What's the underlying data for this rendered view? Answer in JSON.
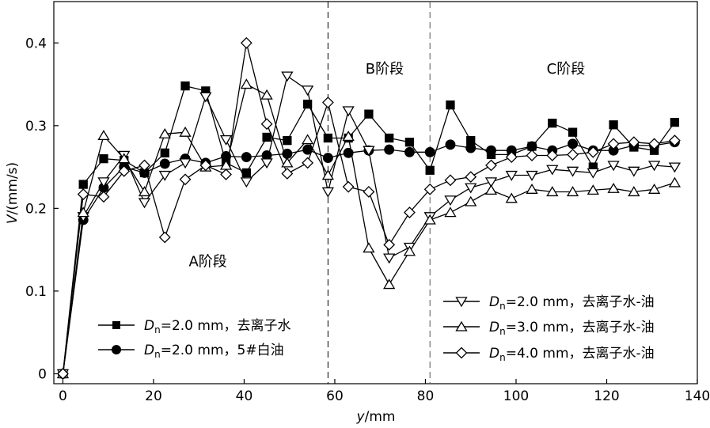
{
  "chart_data": {
    "type": "line",
    "xlabel_var": "y",
    "xlabel_unit": "/mm",
    "ylabel_var": "V",
    "ylabel_unit": "/(mm/s)",
    "xlim": [
      -2,
      140
    ],
    "ylim": [
      -0.012,
      0.45
    ],
    "xticks": [
      0,
      20,
      40,
      60,
      80,
      100,
      120,
      140
    ],
    "yticks": [
      0,
      0.1,
      0.2,
      0.3,
      0.4
    ],
    "ytick_labels": [
      "0",
      "0.1",
      "0.2",
      "0.3",
      "0.4"
    ],
    "stage_lines": [
      58.5,
      81
    ],
    "stages": [
      {
        "label": "A阶段",
        "x": 32,
        "y": 0.13
      },
      {
        "label": "B阶段",
        "x": 71,
        "y": 0.363
      },
      {
        "label": "C阶段",
        "x": 111,
        "y": 0.363
      }
    ],
    "x": [
      0,
      4.5,
      9,
      13.5,
      18,
      22.5,
      27,
      31.5,
      36,
      40.5,
      45,
      49.5,
      54,
      58.5,
      63,
      67.5,
      72,
      76.5,
      81,
      85.5,
      90,
      94.5,
      99,
      103.5,
      108,
      112.5,
      117,
      121.5,
      126,
      130.5,
      135
    ],
    "series": [
      {
        "name_prefix": "D",
        "name_sub": "n",
        "name_rest": "=2.0 mm，去离子水",
        "marker": "square",
        "fill": "filled",
        "values": [
          0,
          0.229,
          0.26,
          0.258,
          0.243,
          0.267,
          0.348,
          0.342,
          0.255,
          0.243,
          0.286,
          0.282,
          0.326,
          0.285,
          0.285,
          0.314,
          0.285,
          0.28,
          0.246,
          0.325,
          0.282,
          0.265,
          0.265,
          0.275,
          0.303,
          0.292,
          0.25,
          0.301,
          0.274,
          0.27,
          0.304
        ]
      },
      {
        "name_prefix": "D",
        "name_sub": "n",
        "name_rest": "=2.0 mm，5#白油",
        "marker": "circle",
        "fill": "filled",
        "values": [
          0,
          0.186,
          0.225,
          0.25,
          0.243,
          0.254,
          0.26,
          0.255,
          0.263,
          0.262,
          0.264,
          0.266,
          0.271,
          0.261,
          0.267,
          0.27,
          0.271,
          0.268,
          0.268,
          0.277,
          0.273,
          0.27,
          0.27,
          0.275,
          0.27,
          0.278,
          0.27,
          0.27,
          0.276,
          0.276,
          0.28
        ]
      },
      {
        "name_prefix": "D",
        "name_sub": "n",
        "name_rest": "=2.0 mm，去离子水-油",
        "marker": "triangle-down",
        "fill": "open",
        "values": [
          0,
          0.19,
          0.232,
          0.264,
          0.207,
          0.24,
          0.255,
          0.335,
          0.283,
          0.232,
          0.255,
          0.36,
          0.343,
          0.22,
          0.318,
          0.27,
          0.14,
          0.153,
          0.19,
          0.21,
          0.225,
          0.232,
          0.24,
          0.24,
          0.247,
          0.245,
          0.243,
          0.252,
          0.245,
          0.252,
          0.25
        ]
      },
      {
        "name_prefix": "D",
        "name_sub": "n",
        "name_rest": "=3.0 mm，去离子水-油",
        "marker": "triangle-up",
        "fill": "open",
        "values": [
          0,
          0.195,
          0.288,
          0.26,
          0.22,
          0.29,
          0.292,
          0.25,
          0.252,
          0.35,
          0.337,
          0.255,
          0.283,
          0.24,
          0.287,
          0.152,
          0.108,
          0.148,
          0.186,
          0.195,
          0.208,
          0.222,
          0.212,
          0.223,
          0.22,
          0.22,
          0.222,
          0.224,
          0.22,
          0.223,
          0.231
        ]
      },
      {
        "name_prefix": "D",
        "name_sub": "n",
        "name_rest": "=4.0 mm，去离子水-油",
        "marker": "diamond",
        "fill": "open",
        "values": [
          0,
          0.217,
          0.214,
          0.245,
          0.252,
          0.165,
          0.235,
          0.252,
          0.241,
          0.4,
          0.302,
          0.242,
          0.255,
          0.328,
          0.226,
          0.22,
          0.156,
          0.195,
          0.223,
          0.234,
          0.238,
          0.252,
          0.262,
          0.264,
          0.264,
          0.265,
          0.268,
          0.278,
          0.28,
          0.278,
          0.282
        ]
      }
    ]
  }
}
